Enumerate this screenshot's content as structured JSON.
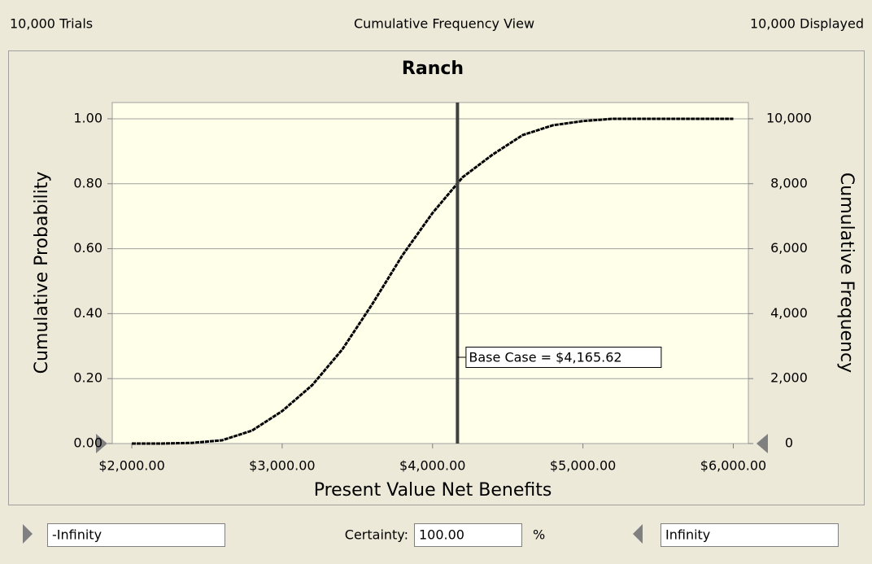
{
  "header": {
    "left": "10,000 Trials",
    "center": "Cumulative Frequency View",
    "right": "10,000 Displayed"
  },
  "chart_data": {
    "type": "line",
    "title": "Ranch",
    "x_label": "Present Value Net Benefits",
    "y_label": "Cumulative Probability",
    "y2_label": "Cumulative Frequency",
    "x": [
      2000,
      2200,
      2400,
      2600,
      2800,
      3000,
      3200,
      3400,
      3600,
      3800,
      4000,
      4200,
      4400,
      4600,
      4800,
      5000,
      5200,
      5400,
      5600,
      5800,
      6000
    ],
    "series": [
      {
        "color": "#000000",
        "values": [
          0,
          0,
          0.002,
          0.01,
          0.04,
          0.1,
          0.18,
          0.29,
          0.43,
          0.58,
          0.71,
          0.82,
          0.89,
          0.95,
          0.98,
          0.993,
          1,
          1,
          1,
          1,
          1
        ]
      }
    ],
    "xlim": [
      1870,
      6100
    ],
    "ylim": [
      0,
      1.05
    ],
    "y2lim": [
      0,
      10500
    ],
    "xticks": [
      {
        "value": 2000,
        "label": "$2,000.00"
      },
      {
        "value": 3000,
        "label": "$3,000.00"
      },
      {
        "value": 4000,
        "label": "$4,000.00"
      },
      {
        "value": 5000,
        "label": "$5,000.00"
      },
      {
        "value": 6000,
        "label": "$6,000.00"
      }
    ],
    "yticks": [
      {
        "value": 0,
        "label": "0.00"
      },
      {
        "value": 0.2,
        "label": "0.20"
      },
      {
        "value": 0.4,
        "label": "0.40"
      },
      {
        "value": 0.6,
        "label": "0.60"
      },
      {
        "value": 0.8,
        "label": "0.80"
      },
      {
        "value": 1,
        "label": "1.00"
      }
    ],
    "y2ticks": [
      0,
      {
        "value": 2000,
        "label": "2,000"
      },
      {
        "value": 4000,
        "label": "4,000"
      },
      {
        "value": 6000,
        "label": "6,000"
      },
      {
        "value": 8000,
        "label": "8,000"
      },
      {
        "value": 10000,
        "label": "10,000"
      }
    ],
    "grid": true,
    "annotation": {
      "text": "Base Case = $4,165.62",
      "x": 4165.62
    }
  },
  "footer": {
    "lower": "-Infinity",
    "certainty_label": "Certainty:",
    "certainty": "100.00",
    "unit": "%",
    "upper": "Infinity"
  }
}
